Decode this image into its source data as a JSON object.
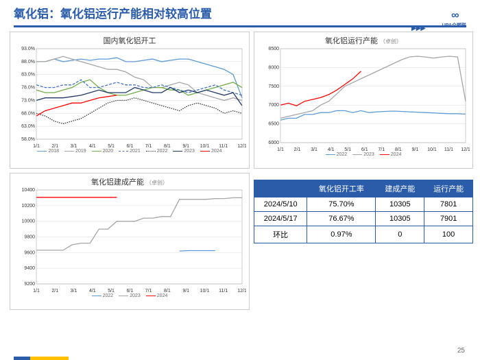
{
  "page": {
    "title": "氧化铝：氧化铝运行产能相对较高位置",
    "number": "25",
    "logo_text": "UPA众塑联"
  },
  "chart1": {
    "title": "国内氧化铝开工",
    "xlabels": [
      "1/1",
      "2/1",
      "3/1",
      "4/1",
      "5/1",
      "6/1",
      "7/1",
      "8/1",
      "9/1",
      "10/1",
      "11/1",
      "12/1"
    ],
    "ylabels": [
      "58.0%",
      "63.0%",
      "68.0%",
      "73.0%",
      "78.0%",
      "83.0%",
      "88.0%",
      "93.0%"
    ],
    "ylim": [
      58,
      93
    ],
    "grid_color": "#dcdcdc",
    "series": [
      {
        "name": "2018",
        "color": "#5b9bd5",
        "style": "solid",
        "data": [
          88,
          88,
          89,
          88,
          88.5,
          89,
          88.5,
          89,
          89,
          89.5,
          88,
          88,
          88.5,
          89,
          88,
          88.5,
          89,
          89,
          88,
          87,
          86,
          85,
          83,
          74
        ]
      },
      {
        "name": "2019",
        "color": "#a5a5a5",
        "style": "solid",
        "data": [
          88,
          88,
          89,
          90,
          89,
          88,
          87,
          86,
          85,
          85,
          84,
          82,
          81,
          78,
          78,
          79,
          80,
          79,
          76,
          75,
          74,
          73,
          74,
          73
        ]
      },
      {
        "name": "2020",
        "color": "#70ad47",
        "style": "solid",
        "data": [
          77,
          76,
          76,
          77,
          78,
          80,
          81,
          78,
          76,
          75,
          75,
          76,
          77,
          78,
          78,
          77,
          77,
          75,
          76,
          77,
          78,
          79,
          80,
          78
        ]
      },
      {
        "name": "2021",
        "color": "#4472c4",
        "style": "dashed",
        "data": [
          79,
          78,
          78,
          79,
          79,
          81,
          78,
          78,
          79,
          80,
          79,
          79,
          78,
          78,
          79,
          78,
          77,
          76,
          77,
          78,
          79,
          77,
          76,
          75
        ]
      },
      {
        "name": "2022",
        "color": "#333333",
        "style": "dotted",
        "data": [
          68,
          67,
          65,
          64,
          65,
          66,
          68,
          70,
          72,
          73,
          73,
          74,
          73,
          72,
          71,
          70,
          69,
          71,
          72,
          71,
          70,
          68,
          69,
          68
        ]
      },
      {
        "name": "2023",
        "color": "#1f3864",
        "style": "solid",
        "data": [
          73,
          74,
          74,
          74,
          74.5,
          75,
          76,
          77,
          76,
          76,
          76,
          78,
          77,
          76,
          76,
          78,
          76,
          77,
          76,
          77,
          76,
          75,
          76,
          71
        ]
      },
      {
        "name": "2024",
        "color": "#ff0000",
        "style": "solid",
        "data": [
          67,
          69,
          70,
          71,
          72,
          72,
          73,
          74,
          74.5,
          75
        ]
      }
    ]
  },
  "chart2": {
    "title": "氧化铝运行产能",
    "sub": "（卓创）",
    "xlabels": [
      "1/1",
      "2/1",
      "3/1",
      "4/1",
      "5/1",
      "6/1",
      "7/1",
      "8/1",
      "9/1",
      "10/1",
      "11/1",
      "12/1"
    ],
    "ylabels": [
      "6000",
      "6500",
      "7000",
      "7500",
      "8000",
      "8500"
    ],
    "ylim": [
      6000,
      8500
    ],
    "grid_color": "#dcdcdc",
    "series": [
      {
        "name": "2022",
        "color": "#5b9bd5",
        "style": "solid",
        "data": [
          6600,
          6650,
          6650,
          6750,
          6750,
          6800,
          6800,
          6850,
          6850,
          6800,
          6850,
          6800,
          6820,
          6830,
          6840,
          6830,
          6820,
          6810,
          6800,
          6790,
          6780,
          6770,
          6770,
          6760
        ]
      },
      {
        "name": "2023",
        "color": "#a5a5a5",
        "style": "solid",
        "data": [
          6650,
          6700,
          6750,
          6800,
          6850,
          7000,
          7100,
          7300,
          7500,
          7600,
          7700,
          7800,
          7900,
          8000,
          8100,
          8200,
          8280,
          8300,
          8280,
          8250,
          8280,
          8300,
          8280,
          7100
        ]
      },
      {
        "name": "2024",
        "color": "#ff0000",
        "style": "solid",
        "data": [
          7000,
          7050,
          6980,
          7100,
          7150,
          7200,
          7280,
          7400,
          7550,
          7700,
          7900
        ]
      }
    ]
  },
  "chart3": {
    "title": "氧化铝建成产能",
    "sub": "（卓创）",
    "xlabels": [
      "1/1",
      "2/1",
      "3/1",
      "4/1",
      "5/1",
      "6/1",
      "7/1",
      "8/1",
      "9/1",
      "10/1",
      "11/1",
      "12/1"
    ],
    "ylabels": [
      "9200",
      "9400",
      "9600",
      "9800",
      "10000",
      "10200",
      "10400"
    ],
    "ylim": [
      9200,
      10400
    ],
    "grid_color": "#dcdcdc",
    "series": [
      {
        "name": "2022",
        "color": "#5b9bd5",
        "style": "solid",
        "data": [
          null,
          null,
          null,
          null,
          null,
          null,
          null,
          null,
          null,
          null,
          null,
          null,
          null,
          null,
          null,
          null,
          9620,
          9625,
          9625,
          9625,
          9625
        ]
      },
      {
        "name": "2023",
        "color": "#a5a5a5",
        "style": "solid",
        "data": [
          9630,
          9630,
          9630,
          9630,
          9700,
          9720,
          9720,
          9900,
          9900,
          10000,
          10000,
          10000,
          10040,
          10040,
          10060,
          10060,
          10280,
          10280,
          10280,
          10280,
          10290,
          10290,
          10300,
          10300
        ]
      },
      {
        "name": "2024",
        "color": "#ff0000",
        "style": "solid",
        "data": [
          10305,
          10305,
          10305,
          10305,
          10305,
          10305,
          10305,
          10305,
          10305,
          10305
        ]
      }
    ]
  },
  "table": {
    "headers": [
      "",
      "氧化铝开工率",
      "建成产能",
      "运行产能"
    ],
    "rows": [
      [
        "2024/5/10",
        "75.70%",
        "10305",
        "7801"
      ],
      [
        "2024/5/17",
        "76.67%",
        "10305",
        "7901"
      ],
      [
        "环比",
        "0.97%",
        "0",
        "100"
      ]
    ]
  }
}
